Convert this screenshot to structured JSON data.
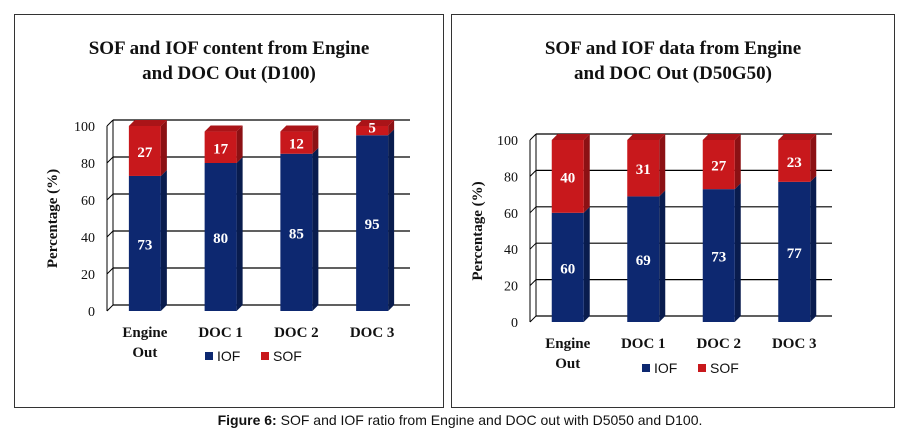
{
  "caption": {
    "label": "Figure 6:",
    "text": "SOF and IOF ratio from Engine and DOC out with D5050 and D100."
  },
  "colors": {
    "iof": "#0d2870",
    "sof": "#c8181c"
  },
  "chart_data": [
    {
      "type": "bar",
      "stacked": true,
      "title_line1": "SOF and IOF content from Engine",
      "title_line2": "and DOC Out (D100)",
      "ylabel": "Percentage (%)",
      "ylim": [
        0,
        100
      ],
      "yticks": [
        "0",
        "20",
        "40",
        "60",
        "80",
        "100"
      ],
      "categories": [
        [
          "Engine",
          "Out"
        ],
        [
          "DOC 1"
        ],
        [
          "DOC 2"
        ],
        [
          "DOC 3"
        ]
      ],
      "series": [
        {
          "name": "IOF",
          "values": [
            73,
            80,
            85,
            95
          ]
        },
        {
          "name": "SOF",
          "values": [
            27,
            17,
            12,
            5
          ]
        }
      ],
      "grid": true,
      "legend": "bottom"
    },
    {
      "type": "bar",
      "stacked": true,
      "title_line1": "SOF and IOF data from Engine",
      "title_line2": "and DOC Out (D50G50)",
      "ylabel": "Percentage (%)",
      "ylim": [
        0,
        100
      ],
      "yticks": [
        "0",
        "20",
        "40",
        "60",
        "80",
        "100"
      ],
      "categories": [
        [
          "Engine",
          "Out"
        ],
        [
          "DOC 1"
        ],
        [
          "DOC 2"
        ],
        [
          "DOC 3"
        ]
      ],
      "series": [
        {
          "name": "IOF",
          "values": [
            60,
            69,
            73,
            77
          ]
        },
        {
          "name": "SOF",
          "values": [
            40,
            31,
            27,
            23
          ]
        }
      ],
      "grid": true,
      "legend": "bottom"
    }
  ]
}
